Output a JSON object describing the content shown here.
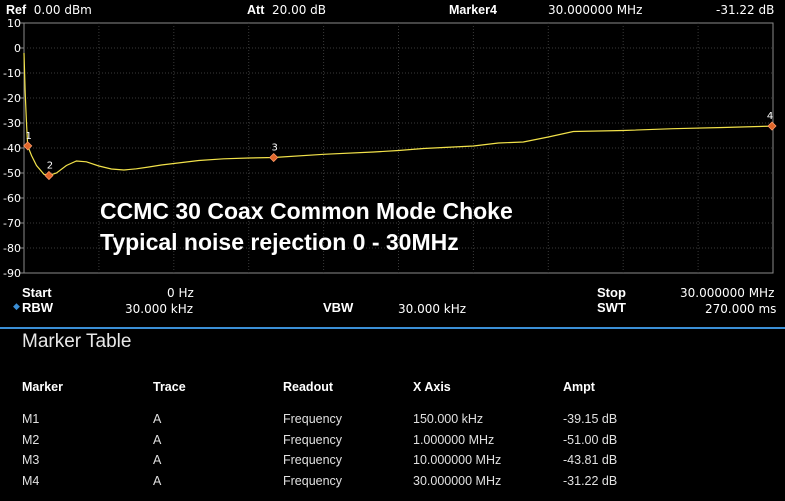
{
  "header": {
    "ref_label": "Ref",
    "ref_value": "0.00 dBm",
    "att_label": "Att",
    "att_value": "20.00 dB",
    "marker_label": "Marker4",
    "marker_freq": "30.000000 MHz",
    "marker_ampt": "-31.22 dB"
  },
  "annotation": {
    "line1": "CCMC 30   Coax Common Mode Choke",
    "line2": "Typical noise rejection 0 - 30MHz"
  },
  "chart_data": {
    "type": "line",
    "x_unit": "MHz",
    "xlim": [
      0,
      30
    ],
    "ylim": [
      -90,
      10
    ],
    "y_ticks": [
      "10",
      "0",
      "-10",
      "-20",
      "-30",
      "-40",
      "-50",
      "-60",
      "-70",
      "-80",
      "-90"
    ],
    "grid": true,
    "trace_color": "#f2e24a",
    "series": [
      {
        "x": [
          0,
          0.05,
          0.1,
          0.15,
          0.3,
          0.5,
          0.8,
          1.0,
          1.3,
          1.7,
          2.1,
          2.5,
          3.0,
          3.5,
          4.0,
          4.5,
          5.0,
          5.5,
          6.0,
          7.0,
          8.0,
          9.0,
          10.0,
          12.0,
          14.0,
          15.0,
          16.0,
          18.0,
          19.0,
          20.0,
          21.0,
          22.0,
          24.0,
          26.0,
          28.0,
          30.0
        ],
        "y": [
          -2,
          -18,
          -30,
          -39.15,
          -43,
          -47,
          -50.5,
          -51.0,
          -50,
          -47,
          -45.2,
          -45.5,
          -47.2,
          -48.4,
          -48.8,
          -48.3,
          -47.6,
          -46.8,
          -46.2,
          -45.0,
          -44.3,
          -44.0,
          -43.81,
          -42.5,
          -41.6,
          -41.0,
          -40.2,
          -39.2,
          -38.0,
          -37.6,
          -35.6,
          -33.4,
          -33.0,
          -32.3,
          -31.8,
          -31.22
        ]
      }
    ],
    "markers": [
      {
        "label": "1",
        "x": 0.15,
        "y": -39.15
      },
      {
        "label": "2",
        "x": 1.0,
        "y": -51.0
      },
      {
        "label": "3",
        "x": 10.0,
        "y": -43.81
      },
      {
        "label": "4",
        "x": 30.0,
        "y": -31.22
      }
    ]
  },
  "settings": {
    "start_label": "Start",
    "start_value": "0 Hz",
    "stop_label": "Stop",
    "stop_value": "30.000000 MHz",
    "rbw_label": "RBW",
    "rbw_value": "30.000 kHz",
    "vbw_label": "VBW",
    "vbw_value": "30.000 kHz",
    "swt_label": "SWT",
    "swt_value": "270.000 ms"
  },
  "marker_table": {
    "title": "Marker Table",
    "headers": [
      "Marker",
      "Trace",
      "Readout",
      "X Axis",
      "Ampt"
    ],
    "rows": [
      [
        "M1",
        "A",
        "Frequency",
        "150.000 kHz",
        "-39.15 dB"
      ],
      [
        "M2",
        "A",
        "Frequency",
        "1.000000 MHz",
        "-51.00 dB"
      ],
      [
        "M3",
        "A",
        "Frequency",
        "10.000000 MHz",
        "-43.81 dB"
      ],
      [
        "M4",
        "A",
        "Frequency",
        "30.000000 MHz",
        "-31.22 dB"
      ]
    ]
  }
}
